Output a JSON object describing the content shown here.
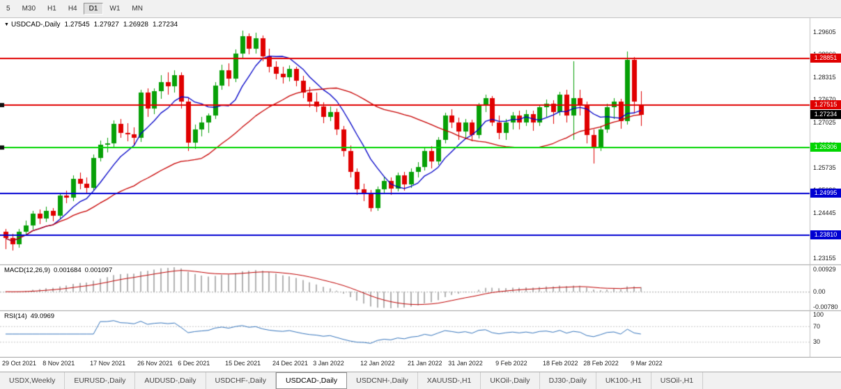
{
  "toolbar": {
    "timeframes": [
      {
        "label": "5",
        "active": false
      },
      {
        "label": "M30",
        "active": false
      },
      {
        "label": "H1",
        "active": false
      },
      {
        "label": "H4",
        "active": false
      },
      {
        "label": "D1",
        "active": true
      },
      {
        "label": "W1",
        "active": false
      },
      {
        "label": "MN",
        "active": false
      }
    ]
  },
  "chart_header": {
    "collapse_icon": "▼",
    "symbol": "USDCAD-,Daily",
    "open": "1.27545",
    "high": "1.27927",
    "low": "1.26928",
    "close": "1.27234"
  },
  "price_axis": {
    "ticks": [
      "1.29605",
      "1.28960",
      "1.28315",
      "1.27670",
      "1.27025",
      "1.26380",
      "1.25735",
      "1.25090",
      "1.24445",
      "1.23800",
      "1.23155"
    ],
    "current_price": {
      "value": "1.27234",
      "bg": "#000000"
    }
  },
  "macd_panel": {
    "label": "MACD(12,26,9)",
    "value_main": "0.001684",
    "value_signal": "0.001097",
    "axis_top": "0.00929",
    "axis_zero": "0.00",
    "axis_bottom": "-0.00780"
  },
  "rsi_panel": {
    "label": "RSI(14)",
    "value": "49.0969",
    "axis": [
      "100",
      "70",
      "30"
    ]
  },
  "date_axis": {
    "labels": [
      {
        "text": "29 Oct 2021",
        "bar": 0
      },
      {
        "text": "8 Nov 2021",
        "bar": 6
      },
      {
        "text": "17 Nov 2021",
        "bar": 13
      },
      {
        "text": "26 Nov 2021",
        "bar": 20
      },
      {
        "text": "6 Dec 2021",
        "bar": 26
      },
      {
        "text": "15 Dec 2021",
        "bar": 33
      },
      {
        "text": "24 Dec 2021",
        "bar": 40
      },
      {
        "text": "3 Jan 2022",
        "bar": 46
      },
      {
        "text": "12 Jan 2022",
        "bar": 53
      },
      {
        "text": "21 Jan 2022",
        "bar": 60
      },
      {
        "text": "31 Jan 2022",
        "bar": 66
      },
      {
        "text": "9 Feb 2022",
        "bar": 73
      },
      {
        "text": "18 Feb 2022",
        "bar": 80
      },
      {
        "text": "28 Feb 2022",
        "bar": 86
      },
      {
        "text": "9 Mar 2022",
        "bar": 93
      }
    ]
  },
  "tabs": [
    {
      "label": "USDX,Weekly",
      "active": false
    },
    {
      "label": "EURUSD-,Daily",
      "active": false
    },
    {
      "label": "AUDUSD-,Daily",
      "active": false
    },
    {
      "label": "USDCHF-,Daily",
      "active": false
    },
    {
      "label": "USDCAD-,Daily",
      "active": true
    },
    {
      "label": "USDCNH-,Daily",
      "active": false
    },
    {
      "label": "XAUUSD-,H1",
      "active": false
    },
    {
      "label": "UKOil-,Daily",
      "active": false
    },
    {
      "label": "DJ30-,Daily",
      "active": false
    },
    {
      "label": "UK100-,H1",
      "active": false
    },
    {
      "label": "USOil-,H1",
      "active": false
    }
  ],
  "chart_data": {
    "type": "candlestick",
    "symbol": "USDCAD-,Daily",
    "timeframe": "D1",
    "title": "USDCAD-,Daily 1.27545 1.27927 1.26928 1.27234",
    "price_range": [
      1.2298,
      1.3
    ],
    "bull_color": "#07a007",
    "bear_color": "#e00000",
    "candles": [
      [
        1.239,
        1.2398,
        1.2342,
        1.2372
      ],
      [
        1.2372,
        1.2385,
        1.2338,
        1.2356
      ],
      [
        1.2356,
        1.2398,
        1.2346,
        1.239
      ],
      [
        1.239,
        1.2422,
        1.2378,
        1.2408
      ],
      [
        1.2408,
        1.245,
        1.2396,
        1.2442
      ],
      [
        1.2442,
        1.2455,
        1.2412,
        1.2428
      ],
      [
        1.2428,
        1.2462,
        1.2418,
        1.245
      ],
      [
        1.245,
        1.2458,
        1.242,
        1.2437
      ],
      [
        1.2437,
        1.2502,
        1.2428,
        1.2495
      ],
      [
        1.2495,
        1.2508,
        1.2472,
        1.2488
      ],
      [
        1.2488,
        1.2552,
        1.2478,
        1.2542
      ],
      [
        1.2542,
        1.256,
        1.2512,
        1.2528
      ],
      [
        1.2528,
        1.2546,
        1.2498,
        1.2516
      ],
      [
        1.2516,
        1.2612,
        1.2508,
        1.2602
      ],
      [
        1.2602,
        1.265,
        1.2592,
        1.2638
      ],
      [
        1.2638,
        1.2658,
        1.2618,
        1.2642
      ],
      [
        1.2642,
        1.2708,
        1.2632,
        1.2698
      ],
      [
        1.2698,
        1.2712,
        1.2658,
        1.2672
      ],
      [
        1.2672,
        1.27,
        1.2648,
        1.2668
      ],
      [
        1.2668,
        1.2688,
        1.2636,
        1.2658
      ],
      [
        1.2658,
        1.2796,
        1.2646,
        1.2788
      ],
      [
        1.2788,
        1.28,
        1.2718,
        1.2742
      ],
      [
        1.2742,
        1.28,
        1.2726,
        1.2792
      ],
      [
        1.2792,
        1.2838,
        1.277,
        1.2818
      ],
      [
        1.2818,
        1.2846,
        1.2782,
        1.2806
      ],
      [
        1.2806,
        1.2852,
        1.2788,
        1.2838
      ],
      [
        1.2838,
        1.2846,
        1.2742,
        1.2762
      ],
      [
        1.2762,
        1.2772,
        1.2622,
        1.2645
      ],
      [
        1.2645,
        1.2696,
        1.2628,
        1.2682
      ],
      [
        1.2682,
        1.2718,
        1.2662,
        1.2702
      ],
      [
        1.2702,
        1.2728,
        1.2672,
        1.2722
      ],
      [
        1.2722,
        1.2818,
        1.2712,
        1.2808
      ],
      [
        1.2808,
        1.2868,
        1.2796,
        1.2852
      ],
      [
        1.2852,
        1.2872,
        1.2806,
        1.2828
      ],
      [
        1.2828,
        1.291,
        1.2818,
        1.2898
      ],
      [
        1.2898,
        1.2964,
        1.2888,
        1.2948
      ],
      [
        1.2948,
        1.2956,
        1.2896,
        1.2912
      ],
      [
        1.2912,
        1.2958,
        1.2898,
        1.2942
      ],
      [
        1.2942,
        1.295,
        1.2878,
        1.2892
      ],
      [
        1.2892,
        1.2912,
        1.2846,
        1.2862
      ],
      [
        1.2862,
        1.2878,
        1.2826,
        1.2842
      ],
      [
        1.2842,
        1.2862,
        1.2814,
        1.2832
      ],
      [
        1.2832,
        1.2866,
        1.282,
        1.2856
      ],
      [
        1.2856,
        1.2862,
        1.2806,
        1.2822
      ],
      [
        1.2822,
        1.2836,
        1.2772,
        1.2788
      ],
      [
        1.2788,
        1.2804,
        1.2746,
        1.2762
      ],
      [
        1.2762,
        1.2788,
        1.2732,
        1.2748
      ],
      [
        1.2748,
        1.276,
        1.27,
        1.2718
      ],
      [
        1.2718,
        1.2748,
        1.2706,
        1.2732
      ],
      [
        1.2732,
        1.2742,
        1.2666,
        1.2682
      ],
      [
        1.2682,
        1.2692,
        1.2606,
        1.2622
      ],
      [
        1.2622,
        1.2636,
        1.2546,
        1.2562
      ],
      [
        1.2562,
        1.2572,
        1.2496,
        1.2512
      ],
      [
        1.2512,
        1.2528,
        1.2478,
        1.2502
      ],
      [
        1.2502,
        1.251,
        1.2448,
        1.2458
      ],
      [
        1.2458,
        1.252,
        1.245,
        1.2512
      ],
      [
        1.2512,
        1.2548,
        1.2498,
        1.2536
      ],
      [
        1.2536,
        1.2546,
        1.2496,
        1.2514
      ],
      [
        1.2514,
        1.256,
        1.2506,
        1.2552
      ],
      [
        1.2552,
        1.2562,
        1.2508,
        1.2526
      ],
      [
        1.2526,
        1.2572,
        1.2516,
        1.2562
      ],
      [
        1.2562,
        1.259,
        1.2546,
        1.2576
      ],
      [
        1.2576,
        1.263,
        1.2566,
        1.2622
      ],
      [
        1.2622,
        1.2634,
        1.2572,
        1.2592
      ],
      [
        1.2592,
        1.266,
        1.2582,
        1.2652
      ],
      [
        1.2652,
        1.273,
        1.2642,
        1.2722
      ],
      [
        1.2722,
        1.274,
        1.2686,
        1.2702
      ],
      [
        1.2702,
        1.2716,
        1.2652,
        1.2676
      ],
      [
        1.2676,
        1.2712,
        1.2658,
        1.2702
      ],
      [
        1.2702,
        1.271,
        1.2648,
        1.2666
      ],
      [
        1.2666,
        1.2758,
        1.2656,
        1.2752
      ],
      [
        1.2752,
        1.2782,
        1.2732,
        1.2772
      ],
      [
        1.2772,
        1.2778,
        1.2692,
        1.2702
      ],
      [
        1.2702,
        1.2722,
        1.2654,
        1.2672
      ],
      [
        1.2672,
        1.2712,
        1.2652,
        1.2702
      ],
      [
        1.2702,
        1.2732,
        1.2682,
        1.2722
      ],
      [
        1.2722,
        1.2736,
        1.2682,
        1.2702
      ],
      [
        1.2702,
        1.2738,
        1.2692,
        1.2726
      ],
      [
        1.2726,
        1.2736,
        1.2678,
        1.2702
      ],
      [
        1.2702,
        1.2754,
        1.2692,
        1.2746
      ],
      [
        1.2746,
        1.2768,
        1.2718,
        1.2756
      ],
      [
        1.2756,
        1.2766,
        1.2698,
        1.2732
      ],
      [
        1.2732,
        1.279,
        1.2722,
        1.2782
      ],
      [
        1.2782,
        1.2796,
        1.2702,
        1.2722
      ],
      [
        1.2722,
        1.2878,
        1.2652,
        1.2772
      ],
      [
        1.2772,
        1.2796,
        1.2722,
        1.2752
      ],
      [
        1.2752,
        1.2762,
        1.2642,
        1.2666
      ],
      [
        1.2666,
        1.2682,
        1.2586,
        1.2632
      ],
      [
        1.2632,
        1.2692,
        1.2622,
        1.2682
      ],
      [
        1.2682,
        1.2756,
        1.2672,
        1.2746
      ],
      [
        1.2746,
        1.2772,
        1.2712,
        1.2762
      ],
      [
        1.2762,
        1.277,
        1.2684,
        1.2706
      ],
      [
        1.2706,
        1.2904,
        1.2696,
        1.2882
      ],
      [
        1.2882,
        1.289,
        1.2728,
        1.2762
      ],
      [
        1.27545,
        1.27927,
        1.26928,
        1.27234
      ]
    ],
    "overlays": {
      "ma_fast": {
        "period": 8,
        "color": "#0000c8"
      },
      "ma_slow": {
        "period": 30,
        "color": "#c80000"
      }
    },
    "levels": [
      {
        "price": 1.28851,
        "label": "1.28851",
        "color": "#e00000",
        "handle": false
      },
      {
        "price": 1.27515,
        "label": "1.27515",
        "color": "#e00000",
        "handle": true
      },
      {
        "price": 1.26306,
        "label": "1.26306",
        "color": "#00d500",
        "handle": true
      },
      {
        "price": 1.24995,
        "label": "1.24995",
        "color": "#0000d2",
        "handle": false
      },
      {
        "price": 1.2381,
        "label": "1.23810",
        "color": "#0000d2",
        "handle": false
      }
    ],
    "indicators": {
      "macd": {
        "fast": 12,
        "slow": 26,
        "signal": 9,
        "histogram_color": "#b2b2b2",
        "signal_color": "#c00000"
      },
      "rsi": {
        "period": 14,
        "color": "#3575bd",
        "levels": [
          70,
          30
        ]
      }
    }
  }
}
